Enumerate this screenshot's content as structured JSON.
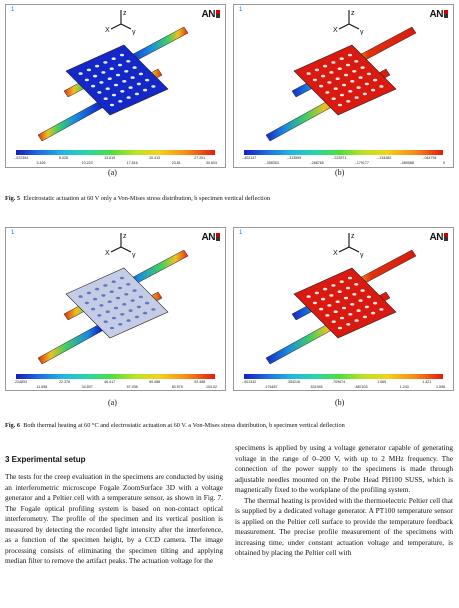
{
  "panels": [
    {
      "index": "1",
      "logo": "AN",
      "ticks_top": [
        "-.022354",
        "6.026",
        "13.619",
        "20.413",
        "27.201"
      ],
      "ticks_bottom": [
        "3.426",
        "10.223",
        "17.816",
        "23.81",
        "30.603"
      ],
      "sub_label": "(a)"
    },
    {
      "index": "1",
      "logo": "AN",
      "ticks_top": [
        "-.402147",
        "-.313559",
        "-.223971",
        "-.134382",
        "-.044794"
      ],
      "ticks_bottom": [
        "-.358353",
        "-.268765",
        "-.179177",
        "-.089588",
        "0"
      ],
      "sub_label": "(b)"
    },
    {
      "index": "1",
      "logo": "AN",
      "ticks_top": [
        ".224893",
        "22.378",
        "46.417",
        "69.488",
        "92.488"
      ],
      "ticks_bottom": [
        "11.658",
        "34.897",
        "57.938",
        "80.979",
        "104.02"
      ],
      "sub_label": "(a)"
    },
    {
      "index": "1",
      "logo": "AN",
      "ticks_top": [
        "-.901342",
        ".354216",
        ".709674",
        "1.065",
        "1.421"
      ],
      "ticks_bottom": [
        ".176487",
        ".531945",
        ".887403",
        "1.243",
        "1.598"
      ],
      "sub_label": "(b)"
    }
  ],
  "axis_labels": {
    "x": "X",
    "y": "y",
    "z": "z"
  },
  "fig5": {
    "label": "Fig. 5",
    "text": "Electrostatic actuation at 60 V only a Von-Mises stress distribution, b specimen vertical deflection"
  },
  "fig6": {
    "label": "Fig. 6",
    "text": "Both thermal heating at 60 °C and electrostatic actuation at 60 V. a Von-Mises stress distribution, b specimen vertical deflection"
  },
  "section_title": "3  Experimental setup",
  "left_column": [
    "The tests for the creep evaluation in the specimens are conducted by using an interferometric microscope Fogale ZoomSurface 3D with a voltage generator and a Peltier cell with a temperature sensor, as shown in Fig. 7. The Fogale optical profiling system is based on non-contact optical interferometry. The profile of the specimen and its vertical position is measured by detecting the recorded light intensity after the interference, as a function of the specimen height, by a CCD camera. The image processing consists of eliminating the specimen tilting and applying median filter to remove the artifact peaks. The actuation voltage for the"
  ],
  "right_column": [
    "specimens is applied by using a voltage generator capable of generating voltage in the range of 0–200 V, with up to 2 MHz frequency. The connection of the power supply to the specimens is made through adjustable needles mounted on the Probe Head PH100 SUSS, which is magnetically fixed to the workplane of the profiling system.",
    "The thermal heating is provided with the thermoelectric Peltier cell that is supplied by a dedicated voltage generator. A PT100 temperature sensor is applied on the Peltier cell surface to provide the temperature feedback measurement. The precise profile measurement of the specimens with increasing time, under constant actuation voltage and temperature, is obtained by placing the Peltier cell with"
  ],
  "colors": {
    "panel_border": "#9a9a9a",
    "plate_blue": "#1428c8",
    "plate_red": "#d81a10",
    "plate_light": "#c5cde6",
    "caption_text": "#111111"
  },
  "icons": [
    "coordinate-triad-icon",
    "ansys-logo"
  ]
}
